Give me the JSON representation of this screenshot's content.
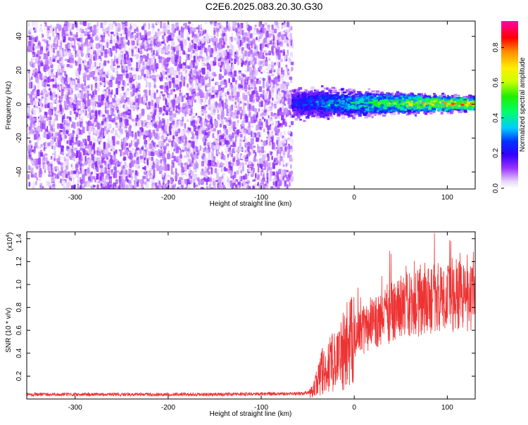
{
  "title": "C2E6.2025.083.20.30.G30",
  "chart_data": [
    {
      "type": "heatmap",
      "xlabel": "Height of straight line (km)",
      "ylabel": "Frequency (Hz)",
      "xlim": [
        -352,
        130
      ],
      "ylim": [
        -50,
        49
      ],
      "xticks": [
        -300,
        -200,
        -100,
        0,
        100
      ],
      "yticks": [
        -40,
        -20,
        0,
        20,
        40
      ],
      "grid": false,
      "colorbar": {
        "label": "Normalized spectral amplitude",
        "range": [
          0,
          0.95
        ],
        "ticks": [
          0.0,
          0.2,
          0.4,
          0.6,
          0.8
        ],
        "colormap": "rainbow (white-violet-blue-cyan-green-yellow-red-magenta)"
      },
      "regions": [
        {
          "x_from": -352,
          "x_to": -68,
          "description_values": {
            "freq_min": -50,
            "freq_max": 49,
            "amplitude_min": 0.0,
            "amplitude_max": 0.1
          }
        },
        {
          "x_from": -68,
          "x_to": 130,
          "description_values": {
            "freq_center": 1,
            "half_width_at_start": 12,
            "half_width_at_end": 5,
            "amplitude_peak": 0.8
          }
        }
      ]
    },
    {
      "type": "line",
      "xlabel": "Height of straight line (km)",
      "ylabel": "SNR (10 * v/v)",
      "y_scale_label": "(x10",
      "y_scale_exponent": "4",
      "xlim": [
        -352,
        130
      ],
      "ylim": [
        0,
        14600
      ],
      "xticks": [
        -300,
        -200,
        -100,
        0,
        100
      ],
      "yticks": [
        2000,
        4000,
        6000,
        8000,
        10000,
        12000,
        14000
      ],
      "ytick_labels": [
        "0.2",
        "0.4",
        "0.6",
        "0.8",
        "1.0",
        "1.2",
        "1.4"
      ],
      "grid": false,
      "series": [
        {
          "color": "#ee3333",
          "x": [
            -352,
            -300,
            -250,
            -200,
            -150,
            -100,
            -60,
            -45,
            -40,
            -35,
            -30,
            -25,
            -20,
            -15,
            -10,
            -5,
            0,
            10,
            20,
            30,
            40,
            50,
            60,
            70,
            80,
            90,
            100,
            110,
            120,
            130
          ],
          "y": [
            400,
            400,
            400,
            400,
            400,
            450,
            450,
            600,
            1500,
            2500,
            2000,
            3500,
            3000,
            3500,
            4500,
            5000,
            5500,
            6000,
            6500,
            7000,
            7500,
            8000,
            8200,
            8400,
            8600,
            8800,
            8900,
            9000,
            9000,
            9000
          ]
        }
      ]
    }
  ]
}
